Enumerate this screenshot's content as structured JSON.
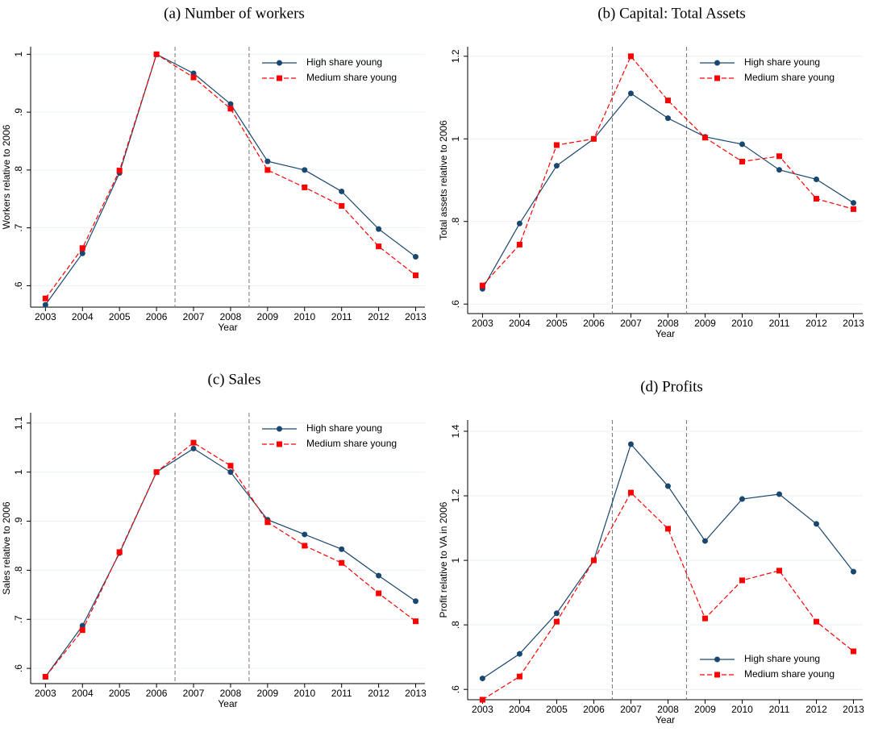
{
  "chart_data": [
    {
      "type": "line",
      "title": "(a) Number of workers",
      "xlabel": "Year",
      "ylabel": "Workers relative to 2006",
      "x": [
        2003,
        2004,
        2005,
        2006,
        2007,
        2008,
        2009,
        2010,
        2011,
        2012,
        2013
      ],
      "series": [
        {
          "name": "High share young",
          "color": "#1a476f",
          "values": [
            0.567,
            0.656,
            0.795,
            1.0,
            0.967,
            0.914,
            0.815,
            0.8,
            0.763,
            0.698,
            0.65
          ]
        },
        {
          "name": "Medium share young",
          "color": "#ff0000",
          "values": [
            0.578,
            0.665,
            0.799,
            1.0,
            0.96,
            0.906,
            0.8,
            0.77,
            0.738,
            0.668,
            0.618
          ]
        }
      ],
      "xlim": [
        2002.6,
        2013.25
      ],
      "xticks": [
        2003,
        2004,
        2005,
        2006,
        2007,
        2008,
        2009,
        2010,
        2011,
        2012,
        2013
      ],
      "ylim": [
        0.563,
        1.013
      ],
      "yticks": [
        {
          "value": 0.6,
          "label": ".6"
        },
        {
          "value": 0.7,
          "label": ".7"
        },
        {
          "value": 0.8,
          "label": ".8"
        },
        {
          "value": 0.9,
          "label": ".9"
        },
        1
      ],
      "vlines": [
        2006.5,
        2008.5
      ],
      "grid": true,
      "legend": "top-right"
    },
    {
      "type": "line",
      "title": "(b) Capital: Total Assets",
      "xlabel": "Year",
      "ylabel": "Total assets relative to 2006",
      "x": [
        2003,
        2004,
        2005,
        2006,
        2007,
        2008,
        2009,
        2010,
        2011,
        2012,
        2013
      ],
      "series": [
        {
          "name": "High share young",
          "color": "#1a476f",
          "values": [
            0.637,
            0.795,
            0.935,
            1.0,
            1.11,
            1.05,
            1.005,
            0.987,
            0.925,
            0.902,
            0.845
          ]
        },
        {
          "name": "Medium share young",
          "color": "#ff0000",
          "values": [
            0.645,
            0.744,
            0.985,
            1.0,
            1.2,
            1.093,
            1.003,
            0.945,
            0.958,
            0.855,
            0.83
          ]
        }
      ],
      "xlim": [
        2002.6,
        2013.25
      ],
      "xticks": [
        2003,
        2004,
        2005,
        2006,
        2007,
        2008,
        2009,
        2010,
        2011,
        2012,
        2013
      ],
      "ylim": [
        0.577,
        1.223
      ],
      "yticks": [
        {
          "value": 0.6,
          "label": ".6"
        },
        {
          "value": 0.8,
          "label": ".8"
        },
        1,
        1.2
      ],
      "vlines": [
        2006.5,
        2008.5
      ],
      "grid": true,
      "legend": "top-right"
    },
    {
      "type": "line",
      "title": "(c) Sales",
      "xlabel": "Year",
      "ylabel": "Sales relative to 2006",
      "x": [
        2003,
        2004,
        2005,
        2006,
        2007,
        2008,
        2009,
        2010,
        2011,
        2012,
        2013
      ],
      "series": [
        {
          "name": "High share young",
          "color": "#1a476f",
          "values": [
            0.583,
            0.687,
            0.835,
            1.0,
            1.048,
            1.0,
            0.903,
            0.873,
            0.843,
            0.789,
            0.737
          ]
        },
        {
          "name": "Medium share young",
          "color": "#ff0000",
          "values": [
            0.583,
            0.678,
            0.837,
            1.0,
            1.06,
            1.013,
            0.898,
            0.85,
            0.815,
            0.753,
            0.696
          ]
        }
      ],
      "xlim": [
        2002.6,
        2013.25
      ],
      "xticks": [
        2003,
        2004,
        2005,
        2006,
        2007,
        2008,
        2009,
        2010,
        2011,
        2012,
        2013
      ],
      "ylim": [
        0.569,
        1.121
      ],
      "yticks": [
        {
          "value": 0.6,
          "label": ".6"
        },
        {
          "value": 0.7,
          "label": ".7"
        },
        {
          "value": 0.8,
          "label": ".8"
        },
        {
          "value": 0.9,
          "label": ".9"
        },
        1,
        1.1
      ],
      "vlines": [
        2006.5,
        2008.5
      ],
      "grid": true,
      "legend": "top-right"
    },
    {
      "type": "line",
      "title": "(d) Profits",
      "xlabel": "Year",
      "ylabel": "Profit relative to VA in 2006",
      "x": [
        2003,
        2004,
        2005,
        2006,
        2007,
        2008,
        2009,
        2010,
        2011,
        2012,
        2013
      ],
      "series": [
        {
          "name": "High share young",
          "color": "#1a476f",
          "values": [
            0.634,
            0.71,
            0.836,
            1.0,
            1.36,
            1.23,
            1.06,
            1.19,
            1.205,
            1.113,
            0.965
          ]
        },
        {
          "name": "Medium share young",
          "color": "#ff0000",
          "values": [
            0.568,
            0.64,
            0.81,
            1.0,
            1.21,
            1.098,
            0.82,
            0.938,
            0.968,
            0.81,
            0.718
          ]
        }
      ],
      "xlim": [
        2002.6,
        2013.25
      ],
      "xticks": [
        2003,
        2004,
        2005,
        2006,
        2007,
        2008,
        2009,
        2010,
        2011,
        2012,
        2013
      ],
      "ylim": [
        0.568,
        1.435
      ],
      "yticks": [
        {
          "value": 0.6,
          "label": ".6"
        },
        {
          "value": 0.8,
          "label": ".8"
        },
        1,
        1.2,
        1.4
      ],
      "vlines": [
        2006.5,
        2008.5
      ],
      "grid": true,
      "legend": "bottom-right"
    }
  ]
}
